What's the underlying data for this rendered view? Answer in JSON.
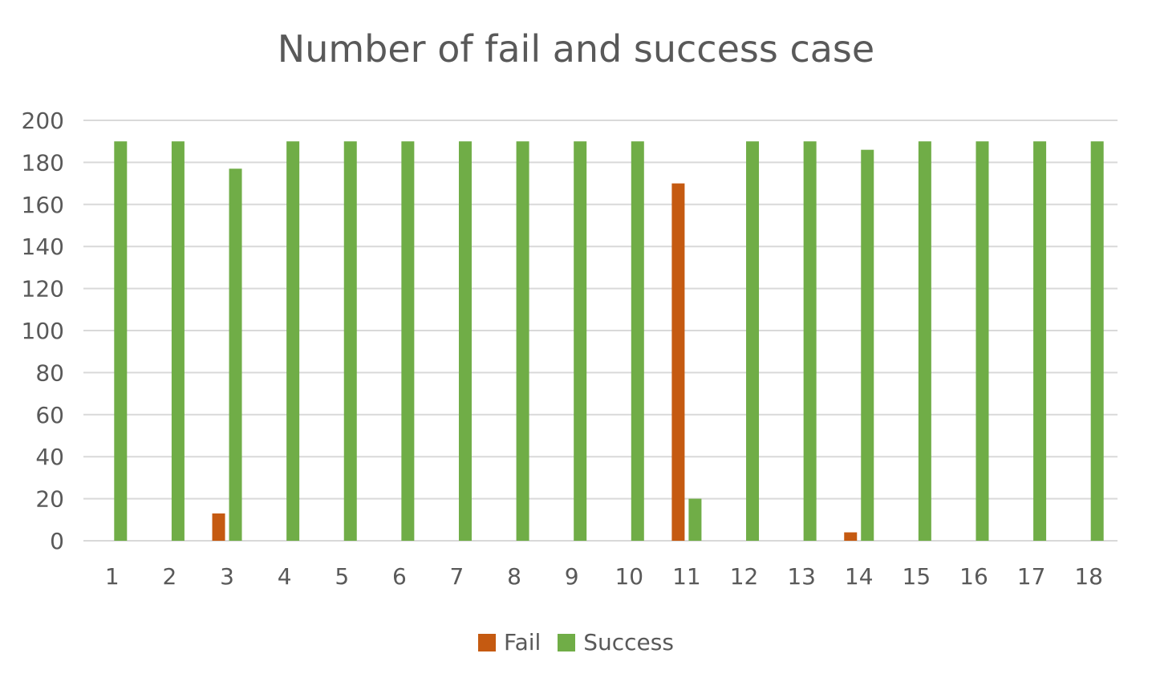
{
  "chart_data": {
    "type": "bar",
    "title": "Number of fail and success case",
    "xlabel": "",
    "ylabel": "",
    "categories": [
      "1",
      "2",
      "3",
      "4",
      "5",
      "6",
      "7",
      "8",
      "9",
      "10",
      "11",
      "12",
      "13",
      "14",
      "15",
      "16",
      "17",
      "18"
    ],
    "series": [
      {
        "name": "Fail",
        "color": "#C55A11",
        "values": [
          0,
          0,
          13,
          0,
          0,
          0,
          0,
          0,
          0,
          0,
          170,
          0,
          0,
          4,
          0,
          0,
          0,
          0
        ]
      },
      {
        "name": "Success",
        "color": "#70AD47",
        "values": [
          190,
          190,
          177,
          190,
          190,
          190,
          190,
          190,
          190,
          190,
          20,
          190,
          190,
          186,
          190,
          190,
          190,
          190
        ]
      }
    ],
    "ylim": [
      0,
      200
    ],
    "yticks": [
      0,
      20,
      40,
      60,
      80,
      100,
      120,
      140,
      160,
      180,
      200
    ],
    "grid": true,
    "legend_position": "bottom"
  }
}
